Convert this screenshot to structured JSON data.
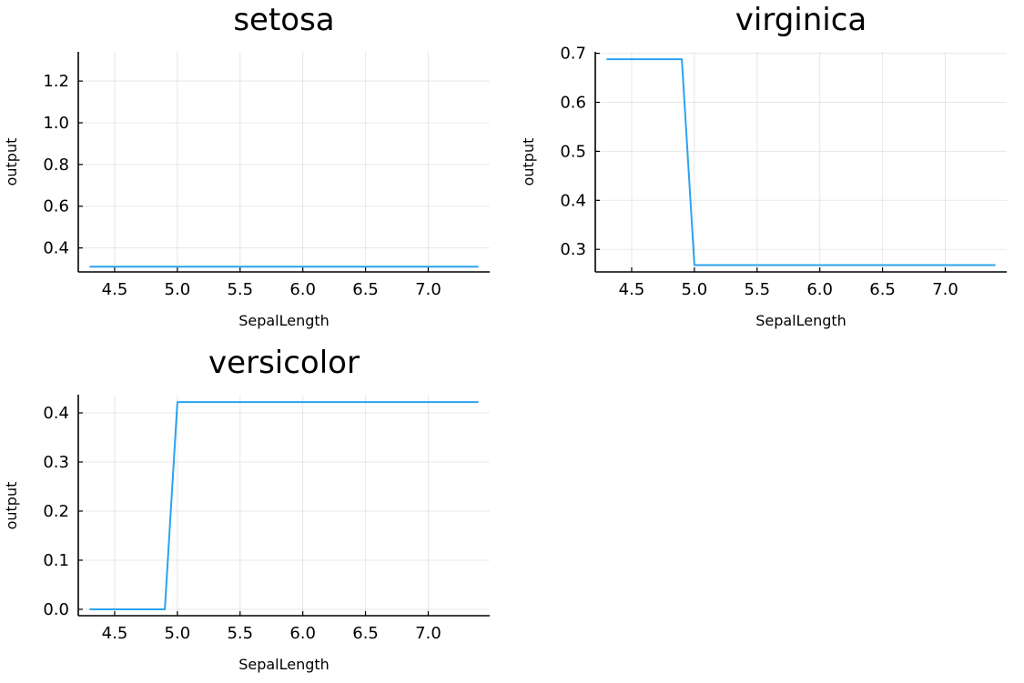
{
  "line_color": "#2aa3ef",
  "chart_data": [
    {
      "type": "line",
      "title": "setosa",
      "xlabel": "SepalLength",
      "ylabel": "output",
      "xlim": [
        4.21,
        7.49
      ],
      "ylim": [
        0.285,
        1.34
      ],
      "xticks": [
        4.5,
        5.0,
        5.5,
        6.0,
        6.5,
        7.0
      ],
      "xtick_labels": [
        "4.5",
        "5.0",
        "5.5",
        "6.0",
        "6.5",
        "7.0"
      ],
      "yticks": [
        0.4,
        0.6,
        0.8,
        1.0,
        1.2
      ],
      "ytick_labels": [
        "0.4",
        "0.6",
        "0.8",
        "1.0",
        "1.2"
      ],
      "grid": true,
      "x": [
        4.3,
        7.4
      ],
      "y": [
        0.31,
        0.31
      ]
    },
    {
      "type": "line",
      "title": "virginica",
      "xlabel": "SepalLength",
      "ylabel": "output",
      "xlim": [
        4.21,
        7.49
      ],
      "ylim": [
        0.254,
        0.703
      ],
      "xticks": [
        4.5,
        5.0,
        5.5,
        6.0,
        6.5,
        7.0
      ],
      "xtick_labels": [
        "4.5",
        "5.0",
        "5.5",
        "6.0",
        "6.5",
        "7.0"
      ],
      "yticks": [
        0.3,
        0.4,
        0.5,
        0.6,
        0.7
      ],
      "ytick_labels": [
        "0.3",
        "0.4",
        "0.5",
        "0.6",
        "0.7"
      ],
      "grid": true,
      "x": [
        4.3,
        4.9,
        5.0,
        7.4
      ],
      "y": [
        0.688,
        0.688,
        0.268,
        0.268
      ]
    },
    {
      "type": "line",
      "title": "versicolor",
      "xlabel": "SepalLength",
      "ylabel": "output",
      "xlim": [
        4.21,
        7.49
      ],
      "ylim": [
        -0.013,
        0.437
      ],
      "xticks": [
        4.5,
        5.0,
        5.5,
        6.0,
        6.5,
        7.0
      ],
      "xtick_labels": [
        "4.5",
        "5.0",
        "5.5",
        "6.0",
        "6.5",
        "7.0"
      ],
      "yticks": [
        0.0,
        0.1,
        0.2,
        0.3,
        0.4
      ],
      "ytick_labels": [
        "0.0",
        "0.1",
        "0.2",
        "0.3",
        "0.4"
      ],
      "grid": true,
      "x": [
        4.3,
        4.9,
        5.0,
        7.4
      ],
      "y": [
        0.0,
        0.0,
        0.422,
        0.422
      ]
    }
  ]
}
